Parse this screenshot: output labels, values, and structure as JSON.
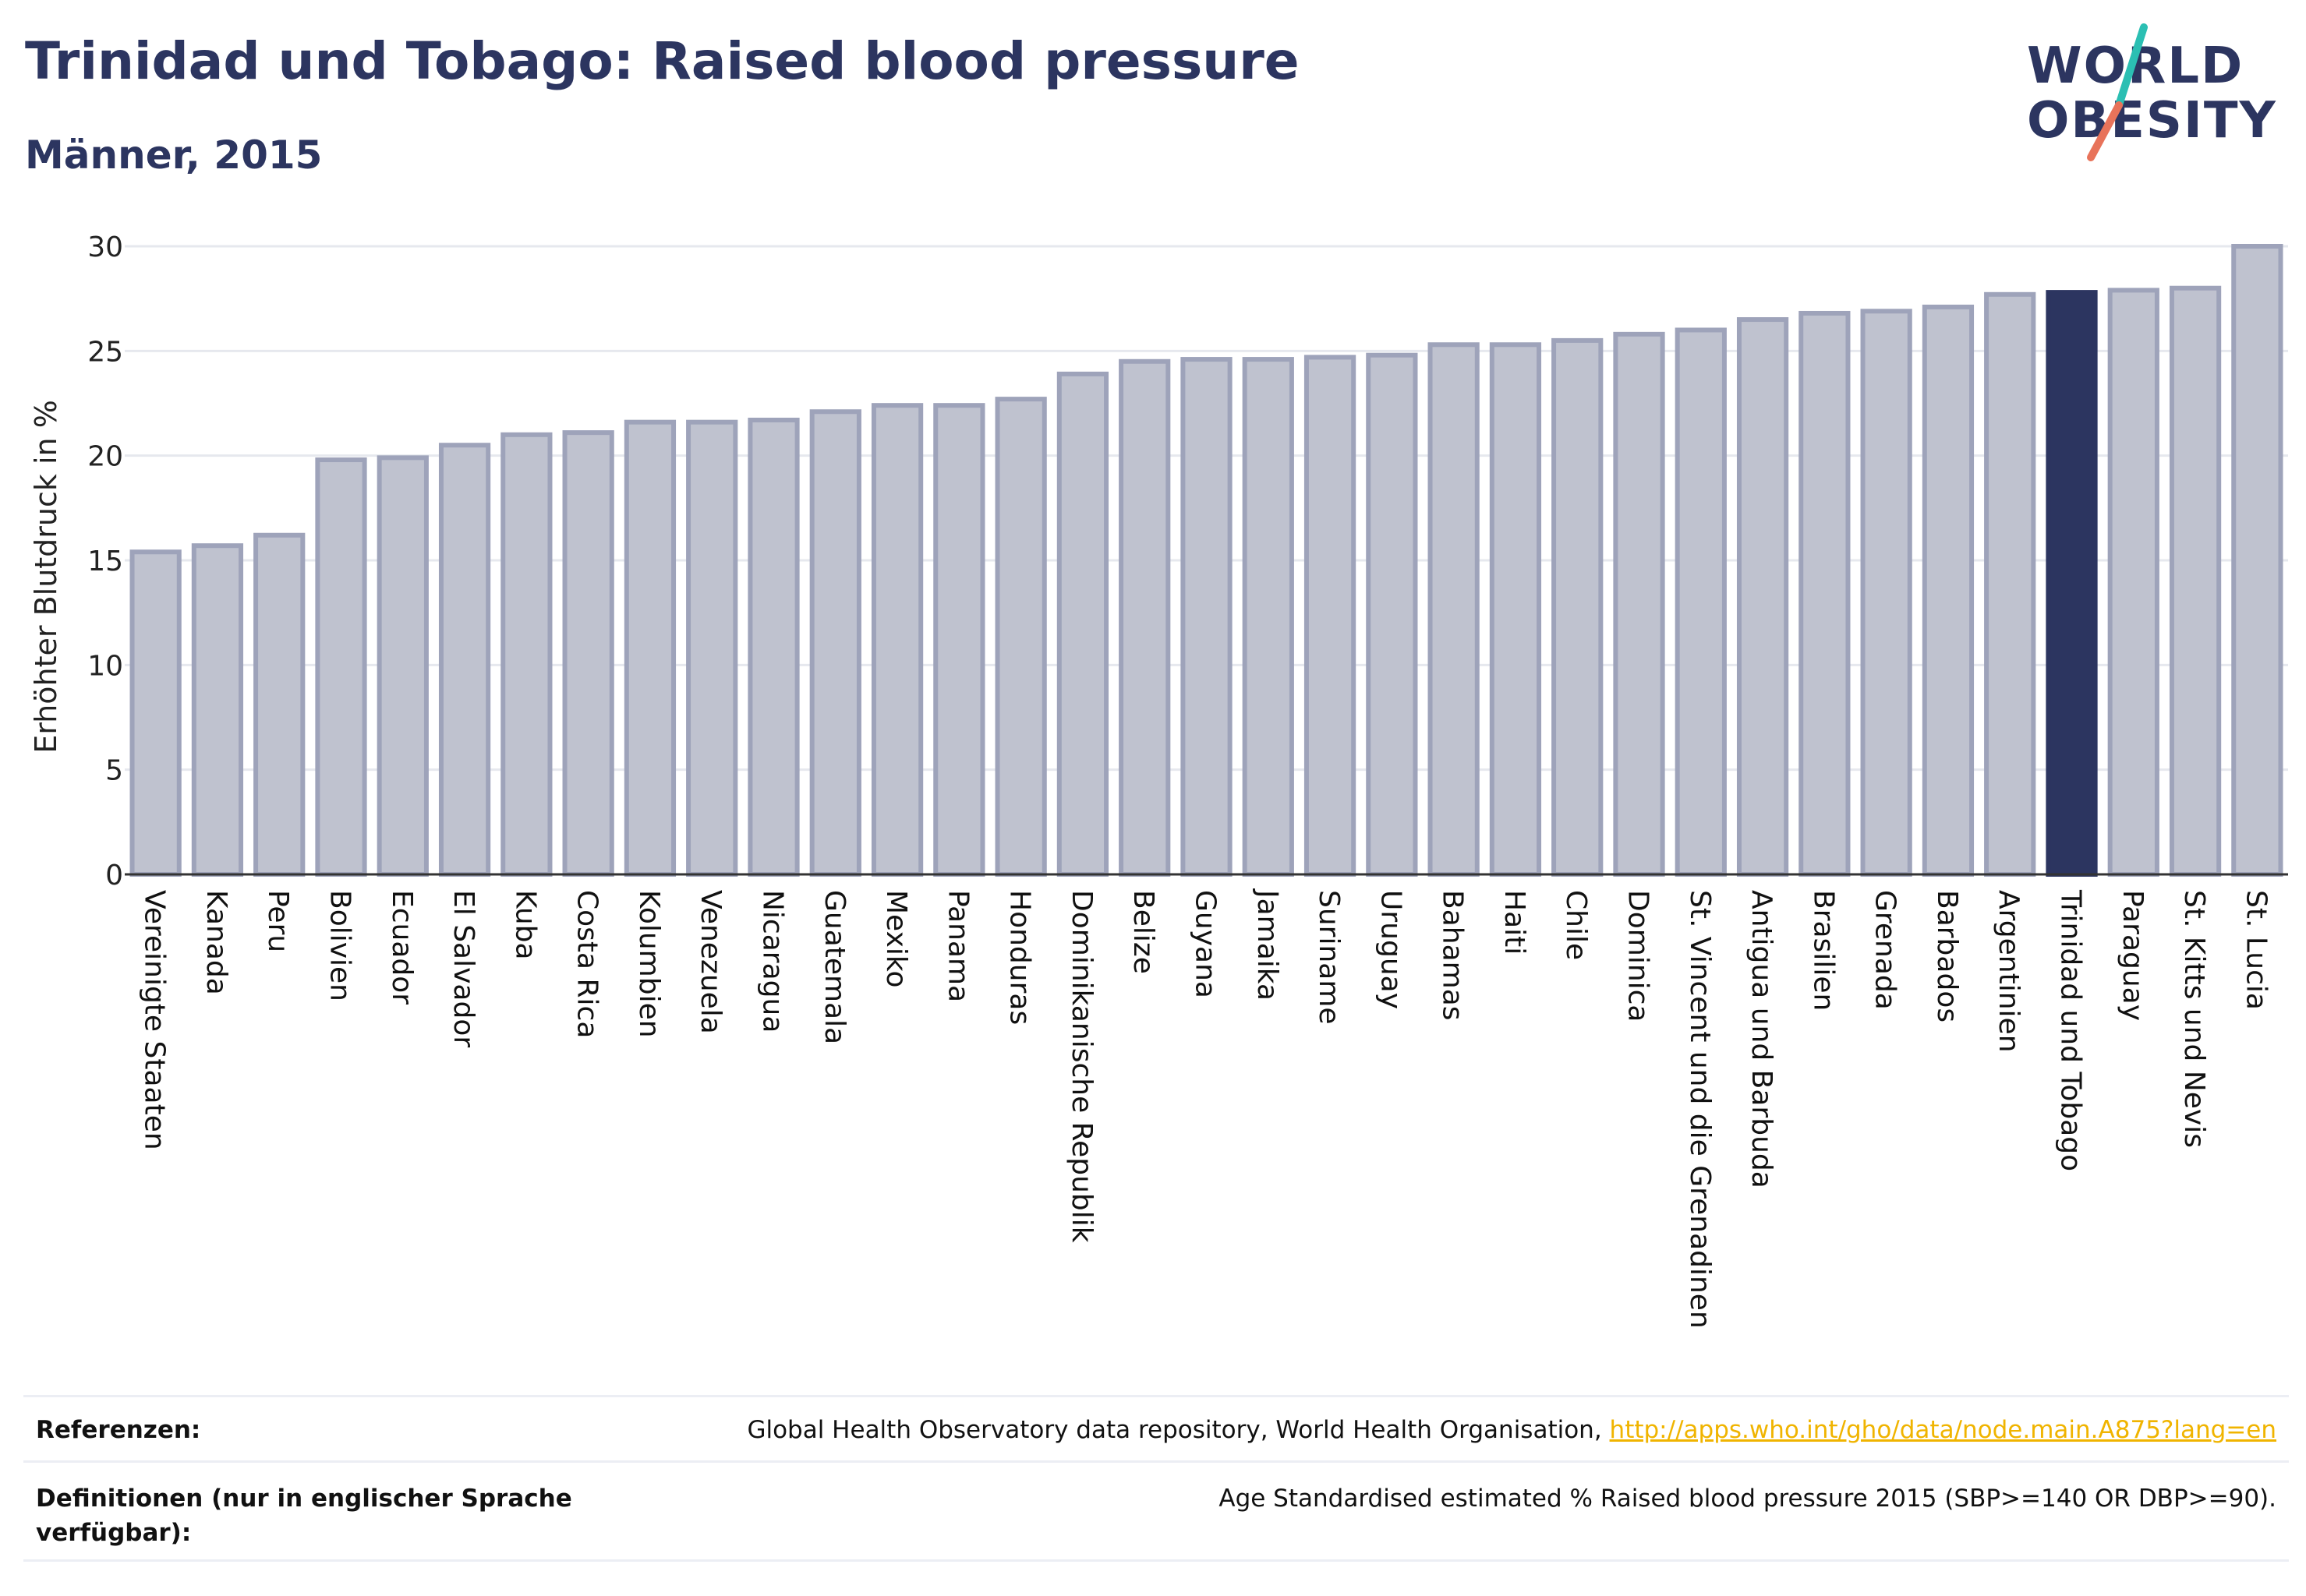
{
  "header": {
    "title": "Trinidad und Tobago: Raised blood pressure",
    "subtitle": "Männer, 2015"
  },
  "logo": {
    "line1": "WORLD",
    "line2": "OBESITY",
    "colors": {
      "text": "#2c3560",
      "slash_top": "#2bbfb3",
      "slash_bottom": "#e8735a"
    }
  },
  "colors": {
    "bar_fill": "#bfc2cf",
    "bar_stroke": "#9ea3ba",
    "highlight": "#2c3560",
    "grid": "#e6e8ee",
    "axis": "#333333"
  },
  "chart_data": {
    "type": "bar",
    "ylabel": "Erhöhter Blutdruck in %",
    "ylim": [
      0,
      30
    ],
    "yticks": [
      "0",
      "5",
      "10",
      "15",
      "20",
      "25",
      "30"
    ],
    "grid": true,
    "highlight": "Trinidad und Tobago",
    "categories": [
      "Vereinigte Staaten",
      "Kanada",
      "Peru",
      "Bolivien",
      "Ecuador",
      "El Salvador",
      "Kuba",
      "Costa Rica",
      "Kolumbien",
      "Venezuela",
      "Nicaragua",
      "Guatemala",
      "Mexiko",
      "Panama",
      "Honduras",
      "Dominikanische Republik",
      "Belize",
      "Guyana",
      "Jamaika",
      "Suriname",
      "Uruguay",
      "Bahamas",
      "Haiti",
      "Chile",
      "Dominica",
      "St. Vincent und die Grenadinen",
      "Antigua und Barbuda",
      "Brasilien",
      "Grenada",
      "Barbados",
      "Argentinien",
      "Trinidad und Tobago",
      "Paraguay",
      "St. Kitts und Nevis",
      "St. Lucia"
    ],
    "values": [
      15.4,
      15.7,
      16.2,
      19.8,
      19.9,
      20.5,
      21.0,
      21.1,
      21.6,
      21.6,
      21.7,
      22.1,
      22.4,
      22.4,
      22.7,
      23.9,
      24.5,
      24.6,
      24.6,
      24.7,
      24.8,
      25.3,
      25.3,
      25.5,
      25.8,
      26.0,
      26.5,
      26.8,
      26.9,
      27.1,
      27.7,
      27.8,
      27.9,
      28.0,
      30.0
    ]
  },
  "footer": {
    "references_label": "Referenzen:",
    "references_text": "Global Health Observatory data repository, World Health Organisation, ",
    "references_link": "http://apps.who.int/gho/data/node.main.A875?lang=en",
    "definitions_label": "Definitionen (nur in englischer Sprache verfügbar):",
    "definitions_text": "Age Standardised estimated % Raised blood pressure 2015 (SBP>=140 OR DBP>=90)."
  }
}
